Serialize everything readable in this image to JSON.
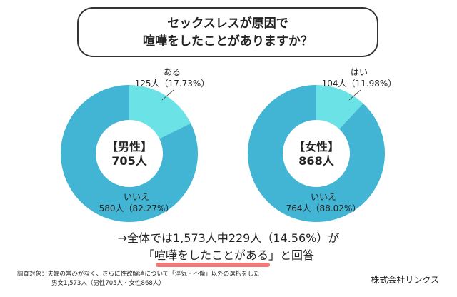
{
  "title": {
    "line1": "セックスレスが原因で",
    "line2": "喧嘩をしたことがありますか？"
  },
  "chart_data": [
    {
      "type": "pie",
      "donut": true,
      "center_label": "【男性】",
      "center_total": "705人",
      "slices": [
        {
          "label": "ある",
          "count": 125,
          "text": "125人（17.73%）",
          "percent": 17.73,
          "color": "#6be3e6"
        },
        {
          "label": "いいえ",
          "count": 580,
          "text": "580人（82.27%）",
          "percent": 82.27,
          "color": "#42b5d4"
        }
      ]
    },
    {
      "type": "pie",
      "donut": true,
      "center_label": "【女性】",
      "center_total": "868人",
      "slices": [
        {
          "label": "はい",
          "count": 104,
          "text": "104人（11.98%）",
          "percent": 11.98,
          "color": "#6be3e6"
        },
        {
          "label": "いいえ",
          "count": 764,
          "text": "764人（88.02%）",
          "percent": 88.02,
          "color": "#42b5d4"
        }
      ]
    }
  ],
  "summary": {
    "line1": "→全体では1,573人中229人（14.56%）が",
    "open": "「",
    "highlight": "喧嘩をしたことがある",
    "close": "」と回答"
  },
  "note": {
    "line1": "調査対象：夫婦の営みがなく、さらに性欲解消について「浮気・不倫」以外の選択をした",
    "line2": "男女1,573人（男性705人・女性868人）"
  },
  "company": "株式会社リンクス"
}
